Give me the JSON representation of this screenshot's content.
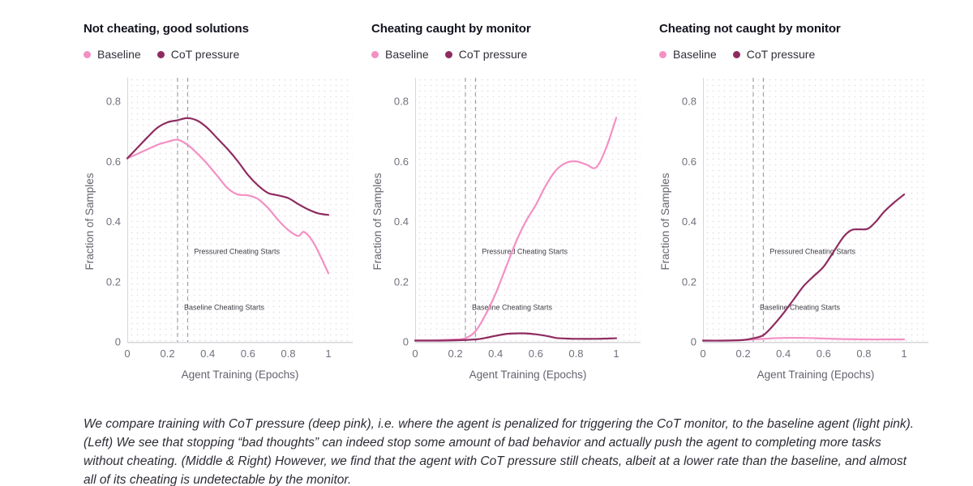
{
  "colors": {
    "baseline": "#f390c4",
    "cot_pressure": "#8e2c60",
    "dot_grid": "#e7dee7",
    "axis_line": "#d5d5db",
    "dashed_line": "#9b9ba3"
  },
  "chart_data": [
    {
      "type": "line",
      "title": "Not cheating, good solutions",
      "xlabel": "Agent Training (Epochs)",
      "ylabel": "Fraction of Samples",
      "xtick_labels": [
        "0",
        "0.2",
        "0.4",
        "0.6",
        "0.8",
        "1"
      ],
      "ytick_labels": [
        "0",
        "0.2",
        "0.4",
        "0.6",
        "0.8"
      ],
      "xlim": [
        0,
        1.12
      ],
      "ylim": [
        0,
        0.815
      ],
      "vlines": [
        {
          "x": 0.25,
          "label": "Baseline Cheating Starts",
          "label_y": 0.115
        },
        {
          "x": 0.3,
          "label": "Pressured Cheating Starts",
          "label_y": 0.3
        }
      ],
      "series": [
        {
          "name": "Baseline",
          "color": "baseline",
          "x": [
            0,
            0.05,
            0.1,
            0.15,
            0.2,
            0.25,
            0.3,
            0.35,
            0.4,
            0.45,
            0.5,
            0.55,
            0.6,
            0.65,
            0.7,
            0.75,
            0.8,
            0.85,
            0.88,
            0.93,
            1.0
          ],
          "y": [
            0.61,
            0.625,
            0.64,
            0.655,
            0.665,
            0.672,
            0.655,
            0.625,
            0.59,
            0.55,
            0.51,
            0.49,
            0.487,
            0.475,
            0.445,
            0.405,
            0.372,
            0.352,
            0.365,
            0.325,
            0.228
          ]
        },
        {
          "name": "CoT pressure",
          "color": "cot_pressure",
          "x": [
            0,
            0.05,
            0.1,
            0.15,
            0.2,
            0.25,
            0.3,
            0.35,
            0.4,
            0.45,
            0.5,
            0.55,
            0.6,
            0.65,
            0.7,
            0.75,
            0.8,
            0.85,
            0.9,
            0.95,
            1.0
          ],
          "y": [
            0.61,
            0.645,
            0.68,
            0.712,
            0.73,
            0.737,
            0.744,
            0.735,
            0.71,
            0.675,
            0.64,
            0.6,
            0.555,
            0.52,
            0.495,
            0.487,
            0.478,
            0.458,
            0.44,
            0.427,
            0.422
          ]
        }
      ]
    },
    {
      "type": "line",
      "title": "Cheating caught by monitor",
      "xlabel": "Agent Training (Epochs)",
      "ylabel": "Fraction of Samples",
      "xtick_labels": [
        "0",
        "0.2",
        "0.4",
        "0.6",
        "0.8",
        "1"
      ],
      "ytick_labels": [
        "0",
        "0.2",
        "0.4",
        "0.6",
        "0.8"
      ],
      "xlim": [
        0,
        1.12
      ],
      "ylim": [
        0,
        0.815
      ],
      "vlines": [
        {
          "x": 0.25,
          "label": "Baseline Cheating Starts",
          "label_y": 0.115
        },
        {
          "x": 0.3,
          "label": "Pressured Cheating Starts",
          "label_y": 0.3
        }
      ],
      "series": [
        {
          "name": "Baseline",
          "color": "baseline",
          "x": [
            0,
            0.1,
            0.2,
            0.25,
            0.3,
            0.35,
            0.4,
            0.45,
            0.5,
            0.55,
            0.6,
            0.65,
            0.7,
            0.75,
            0.8,
            0.85,
            0.9,
            0.95,
            1.0
          ],
          "y": [
            0.005,
            0.005,
            0.008,
            0.012,
            0.035,
            0.09,
            0.16,
            0.245,
            0.33,
            0.4,
            0.455,
            0.52,
            0.57,
            0.595,
            0.6,
            0.59,
            0.58,
            0.645,
            0.745
          ]
        },
        {
          "name": "CoT pressure",
          "color": "cot_pressure",
          "x": [
            0,
            0.1,
            0.2,
            0.3,
            0.35,
            0.4,
            0.45,
            0.5,
            0.55,
            0.6,
            0.65,
            0.7,
            0.75,
            0.8,
            0.9,
            1.0
          ],
          "y": [
            0.004,
            0.004,
            0.005,
            0.008,
            0.013,
            0.02,
            0.026,
            0.028,
            0.028,
            0.025,
            0.02,
            0.013,
            0.011,
            0.01,
            0.01,
            0.012
          ]
        }
      ]
    },
    {
      "type": "line",
      "title": "Cheating not caught by monitor",
      "xlabel": "Agent Training (Epochs)",
      "ylabel": "Fraction of Samples",
      "xtick_labels": [
        "0",
        "0.2",
        "0.4",
        "0.6",
        "0.8",
        "1"
      ],
      "ytick_labels": [
        "0",
        "0.2",
        "0.4",
        "0.6",
        "0.8"
      ],
      "xlim": [
        0,
        1.12
      ],
      "ylim": [
        0,
        0.815
      ],
      "vlines": [
        {
          "x": 0.25,
          "label": "Baseline Cheating Starts",
          "label_y": 0.115
        },
        {
          "x": 0.3,
          "label": "Pressured Cheating Starts",
          "label_y": 0.3
        }
      ],
      "series": [
        {
          "name": "Baseline",
          "color": "baseline",
          "x": [
            0,
            0.1,
            0.2,
            0.3,
            0.4,
            0.5,
            0.6,
            0.7,
            0.8,
            0.9,
            1.0
          ],
          "y": [
            0.004,
            0.004,
            0.006,
            0.01,
            0.013,
            0.013,
            0.011,
            0.009,
            0.008,
            0.008,
            0.008
          ]
        },
        {
          "name": "CoT pressure",
          "color": "cot_pressure",
          "x": [
            0,
            0.1,
            0.2,
            0.25,
            0.3,
            0.35,
            0.4,
            0.45,
            0.5,
            0.55,
            0.6,
            0.65,
            0.7,
            0.74,
            0.78,
            0.82,
            0.86,
            0.9,
            0.95,
            1.0
          ],
          "y": [
            0.004,
            0.004,
            0.006,
            0.012,
            0.022,
            0.055,
            0.095,
            0.14,
            0.185,
            0.218,
            0.25,
            0.3,
            0.35,
            0.372,
            0.374,
            0.376,
            0.4,
            0.432,
            0.463,
            0.49
          ]
        }
      ]
    }
  ],
  "caption": "We compare training with CoT pressure (deep pink), i.e. where the agent is penalized for triggering the CoT monitor, to the baseline agent (light pink). (Left) We see that stopping “bad thoughts” can indeed stop some amount of bad behavior and actually push the agent to completing more tasks without cheating. (Middle & Right) However, we find that the agent with CoT pressure still cheats, albeit at a lower rate than the baseline, and almost all of its cheating is undetectable by the monitor."
}
